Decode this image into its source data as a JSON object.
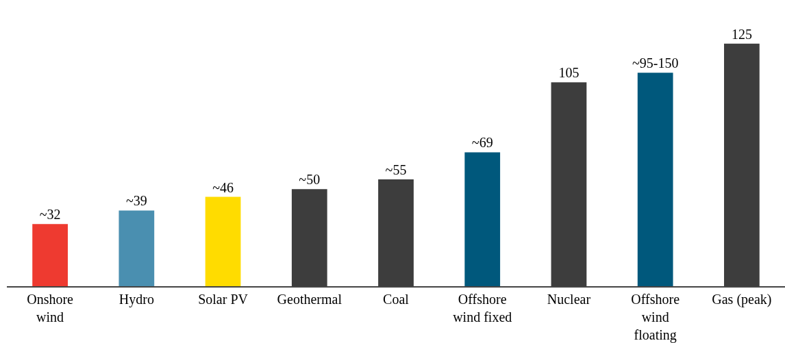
{
  "chart_data": {
    "type": "bar",
    "categories": [
      "Onshore wind",
      "Hydro",
      "Solar PV",
      "Geothermal",
      "Coal",
      "Offshore wind fixed",
      "Nuclear",
      "Offshore wind floating",
      "Gas (peak)"
    ],
    "values": [
      32,
      39,
      46,
      50,
      55,
      69,
      105,
      110,
      125
    ],
    "value_labels": [
      "~32",
      "~39",
      "~46",
      "~50",
      "~55",
      "~69",
      "105",
      "~95-150",
      "125"
    ],
    "colors": [
      "#ee3a30",
      "#4a8fb0",
      "#ffdc00",
      "#3d3d3d",
      "#3d3d3d",
      "#00587c",
      "#3d3d3d",
      "#00587c",
      "#3d3d3d"
    ],
    "grid": false
  }
}
